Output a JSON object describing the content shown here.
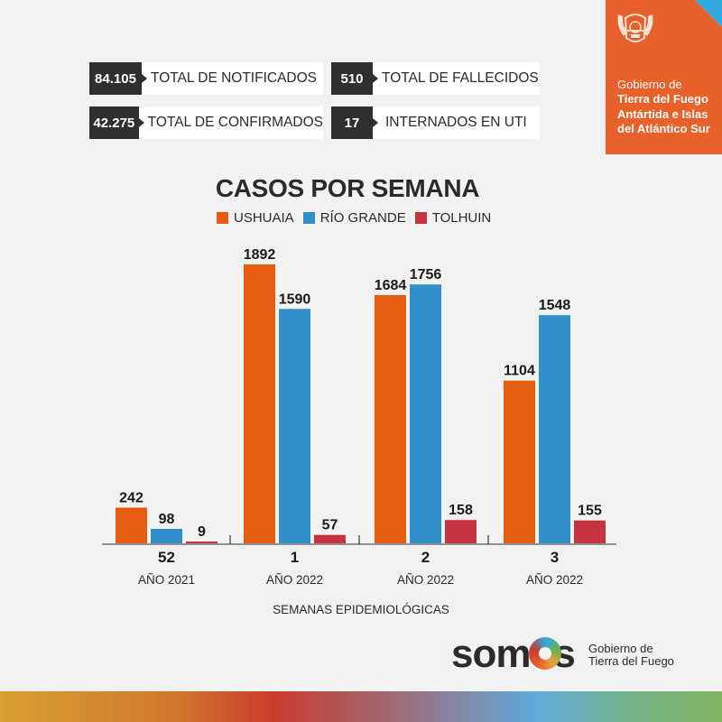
{
  "stats": [
    {
      "value": "84.105",
      "label": "TOTAL DE NOTIFICADOS"
    },
    {
      "value": "510",
      "label": "TOTAL DE FALLECIDOS"
    },
    {
      "value": "42.275",
      "label": "TOTAL DE CONFIRMADOS"
    },
    {
      "value": "17",
      "label": "INTERNADOS EN UTI"
    }
  ],
  "gov_badge": {
    "line1": "Gobierno de",
    "line2": "Tierra del Fuego",
    "line3": "Antártida e Islas",
    "line4": "del Atlántico Sur",
    "background": "#e8602a",
    "corner_color": "#2fa8e0"
  },
  "chart_data": {
    "type": "bar",
    "title": "CASOS POR SEMANA",
    "xlabel": "SEMANAS EPIDEMIOLÓGICAS",
    "ylabel": "",
    "categories": [
      "52",
      "1",
      "2",
      "3"
    ],
    "category_sublabels": [
      "AÑO 2021",
      "AÑO 2022",
      "AÑO 2022",
      "AÑO 2022"
    ],
    "series": [
      {
        "name": "USHUAIA",
        "color": "#e65c10",
        "values": [
          242,
          1892,
          1684,
          1104
        ]
      },
      {
        "name": "RÍO GRANDE",
        "color": "#318fcb",
        "values": [
          98,
          1590,
          1756,
          1548
        ]
      },
      {
        "name": "TOLHUIN",
        "color": "#c7333f",
        "values": [
          9,
          57,
          158,
          155
        ]
      }
    ],
    "ylim": [
      0,
      1892
    ],
    "grid": false,
    "legend": "top-center"
  },
  "footer": {
    "brand": "somos",
    "tagline_line1": "Gobierno de",
    "tagline_line2": "Tierra del Fuego"
  }
}
